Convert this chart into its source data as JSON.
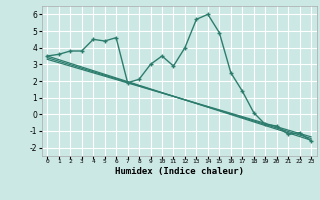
{
  "title": "",
  "xlabel": "Humidex (Indice chaleur)",
  "ylabel": "",
  "bg_color": "#cce8e4",
  "grid_color": "#ffffff",
  "line_color": "#2d7d6e",
  "xlim": [
    -0.5,
    23.5
  ],
  "ylim": [
    -2.5,
    6.5
  ],
  "yticks": [
    -2,
    -1,
    0,
    1,
    2,
    3,
    4,
    5,
    6
  ],
  "xticks": [
    0,
    1,
    2,
    3,
    4,
    5,
    6,
    7,
    8,
    9,
    10,
    11,
    12,
    13,
    14,
    15,
    16,
    17,
    18,
    19,
    20,
    21,
    22,
    23
  ],
  "curve1_x": [
    0,
    1,
    2,
    3,
    4,
    5,
    6,
    7,
    8,
    9,
    10,
    11,
    12,
    13,
    14,
    15,
    16,
    17,
    18,
    19,
    20,
    21,
    22,
    23
  ],
  "curve1_y": [
    3.5,
    3.6,
    3.8,
    3.8,
    4.5,
    4.4,
    4.6,
    1.9,
    2.1,
    3.0,
    3.5,
    2.9,
    4.0,
    5.7,
    6.0,
    4.9,
    2.5,
    1.4,
    0.1,
    -0.6,
    -0.7,
    -1.2,
    -1.1,
    -1.6
  ],
  "curve2_x": [
    0,
    23
  ],
  "curve2_y": [
    3.5,
    -1.55
  ],
  "curve3_x": [
    0,
    23
  ],
  "curve3_y": [
    3.4,
    -1.45
  ],
  "curve4_x": [
    0,
    23
  ],
  "curve4_y": [
    3.3,
    -1.35
  ]
}
